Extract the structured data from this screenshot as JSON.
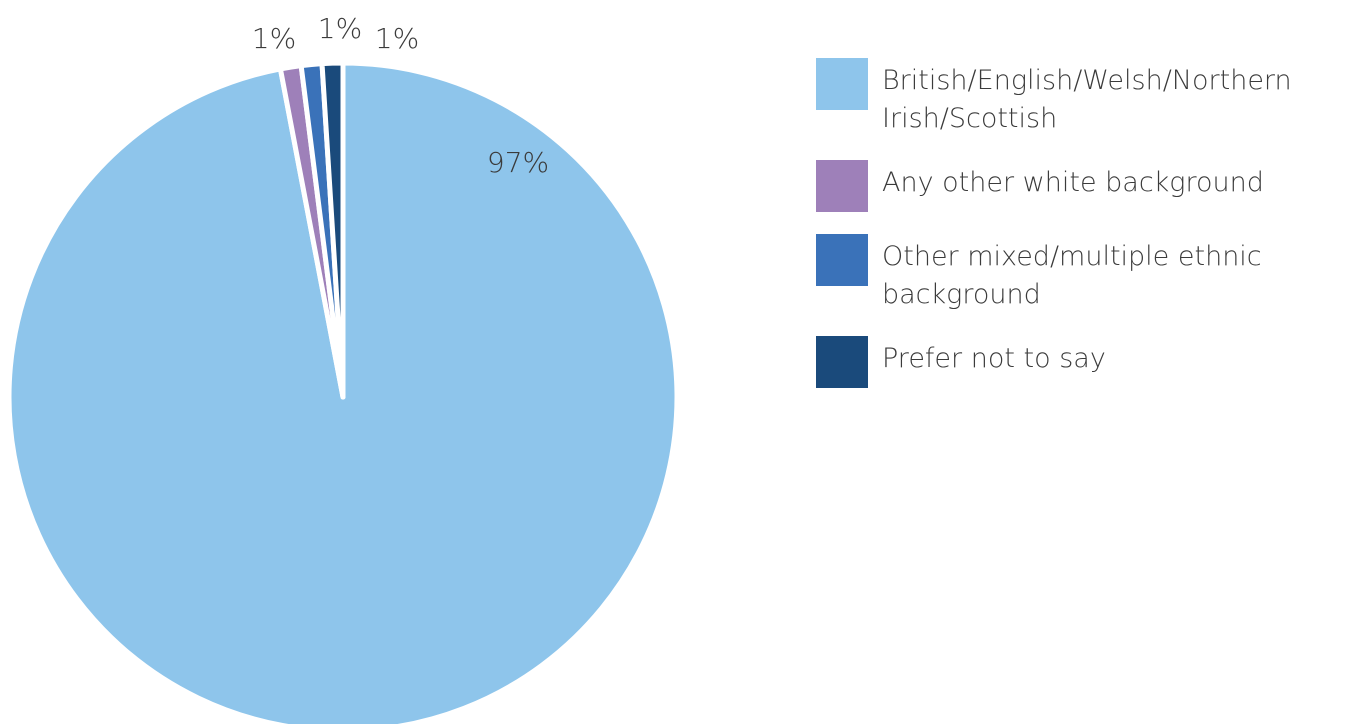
{
  "chart_data": {
    "type": "pie",
    "title": "",
    "categories": [
      "British/English/Welsh/Northern Irish/Scottish",
      "Any other white background",
      "Other mixed/multiple ethnic background",
      "Prefer not to say"
    ],
    "values": [
      97,
      1,
      1,
      1
    ],
    "data_labels": [
      "97%",
      "1%",
      "1%",
      "1%"
    ],
    "colors": [
      "#8ec5eb",
      "#9e80b9",
      "#3a72b9",
      "#1a4a7b"
    ],
    "legend_position": "right"
  }
}
